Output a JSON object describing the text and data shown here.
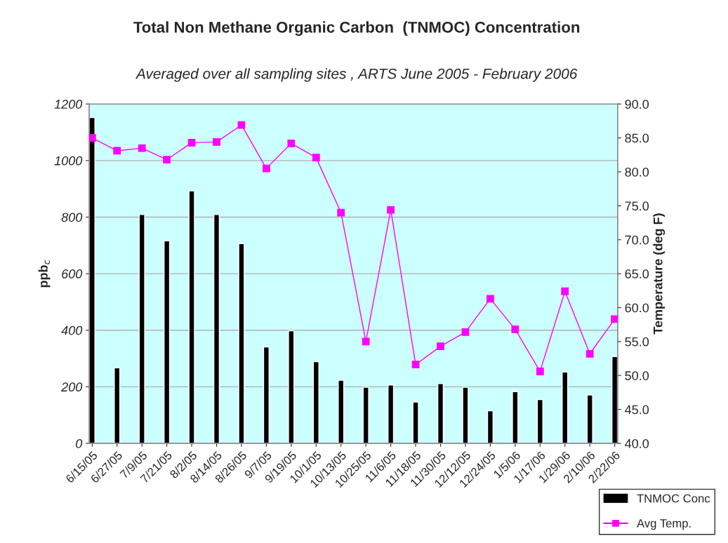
{
  "chart_data": {
    "type": "bar",
    "title": "Total Non Methane Organic Carbon  (TNMOC) Concentration",
    "subtitle": "Averaged over all sampling sites , ARTS June 2005 - February 2006",
    "ylabel": "ppb$_{c}$",
    "y2label": "Temperature (deg F)",
    "categories": [
      "6/15/05",
      "6/27/05",
      "7/9/05",
      "7/21/05",
      "8/2/05",
      "8/14/05",
      "8/26/05",
      "9/7/05",
      "9/19/05",
      "10/1/05",
      "10/13/05",
      "10/25/05",
      "11/6/05",
      "11/18/05",
      "11/30/05",
      "12/12/05",
      "12/24/05",
      "1/5/06",
      "1/17/06",
      "1/29/06",
      "2/10/06",
      "2/22/06"
    ],
    "series": [
      {
        "name": "TNMOC Conc",
        "color": "#000000",
        "values": [
          1152,
          267,
          809,
          716,
          893,
          809,
          706,
          341,
          398,
          289,
          223,
          198,
          206,
          146,
          211,
          198,
          115,
          183,
          155,
          252,
          171,
          307
        ]
      },
      {
        "name": "Avg Temp.",
        "type": "line",
        "axis": "y2",
        "color": "#ff00ff",
        "marker": "square",
        "values": [
          85.0,
          83.1,
          83.5,
          81.8,
          84.3,
          84.4,
          86.9,
          80.5,
          84.2,
          82.1,
          74.0,
          55.0,
          74.4,
          51.6,
          54.3,
          56.4,
          61.3,
          56.8,
          50.6,
          62.4,
          53.2,
          58.3
        ]
      }
    ],
    "ylim": [
      0,
      1200
    ],
    "yticks": [
      0,
      200,
      400,
      600,
      800,
      1000,
      1200
    ],
    "y2lim": [
      40,
      90
    ],
    "y2ticks": [
      {
        "value": 40,
        "label": "40.0"
      },
      {
        "value": 45,
        "label": "45.0"
      },
      {
        "value": 50,
        "label": "50.0"
      },
      {
        "value": 55,
        "label": "55.0"
      },
      {
        "value": 60,
        "label": "60.0"
      },
      {
        "value": 65,
        "label": "65.0"
      },
      {
        "value": 70,
        "label": "70.0"
      },
      {
        "value": 75,
        "label": "75.0"
      },
      {
        "value": 80,
        "label": "80.0"
      },
      {
        "value": 85,
        "label": "85.0"
      },
      {
        "value": 90,
        "label": "90.0"
      }
    ],
    "grid": "y",
    "legend": "bottom right"
  }
}
